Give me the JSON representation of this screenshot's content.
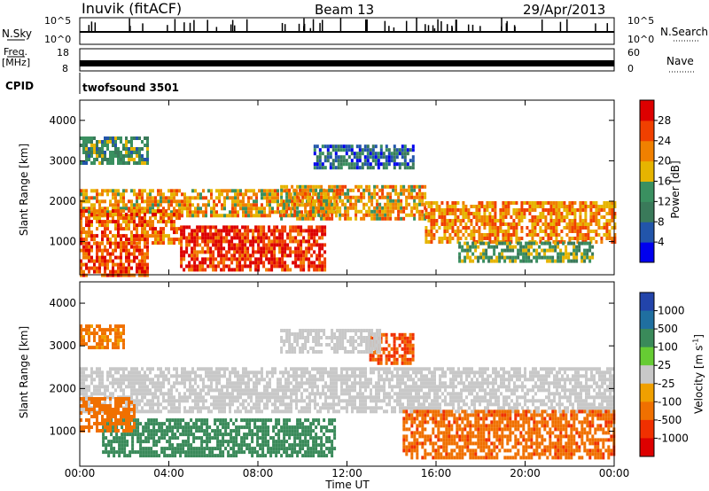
{
  "header": {
    "station": "Inuvik (fitACF)",
    "beam": "Beam 13",
    "date": "29/Apr/2013"
  },
  "summary_panels": {
    "nsky_label": "N.Sky",
    "nsky_tick_top": "10^5",
    "nsky_tick_bottom": "10^0",
    "nsearch_label": "N.Search",
    "nsearch_tick_top": "10^5",
    "nsearch_tick_bottom": "10^0",
    "freq_label": "Freq.",
    "freq_unit": "[MHz]",
    "freq_tick_top": "18",
    "freq_tick_bottom": "8",
    "nave_label": "Nave",
    "nave_tick_top": "60",
    "nave_tick_bottom": "0",
    "cpid_label": "CPID",
    "cpid_value": "twofsound 3501"
  },
  "colors": {
    "power_scale": [
      "#0000ee",
      "#2255aa",
      "#3a7a5a",
      "#3a9060",
      "#e6b400",
      "#f08000",
      "#f04000",
      "#dd0000"
    ],
    "velocity_scale": [
      "#2244aa",
      "#1f6fa0",
      "#3a8a5a",
      "#66cc33",
      "#c8c8c8",
      "#f0a000",
      "#f07000",
      "#f03000",
      "#dd0000"
    ]
  },
  "chart_data": [
    {
      "type": "heatmap",
      "title": "",
      "ylabel": "Slant Range [km]",
      "xlabel": "",
      "x_ticks": [
        "00:00",
        "04:00",
        "08:00",
        "12:00",
        "16:00",
        "20:00",
        "00:00"
      ],
      "x_range_hours": [
        0,
        24
      ],
      "y_ticks": [
        1000,
        2000,
        3000,
        4000
      ],
      "y_range": [
        180,
        4500
      ],
      "colorbar": {
        "label": "Power [dB]",
        "tick_labels": [
          "4",
          "8",
          "12",
          "16",
          "20",
          "24",
          "28"
        ],
        "range": [
          0,
          32
        ]
      },
      "regions": [
        {
          "t0": 0.0,
          "t1": 11.5,
          "r0": 1600,
          "r1": 2300,
          "value": 20
        },
        {
          "t0": 0.0,
          "t1": 4.5,
          "r0": 1000,
          "r1": 1800,
          "value": 24
        },
        {
          "t0": 4.5,
          "t1": 11.0,
          "r0": 300,
          "r1": 1400,
          "value": 28
        },
        {
          "t0": 0.0,
          "t1": 3.0,
          "r0": 200,
          "r1": 1000,
          "value": 26
        },
        {
          "t0": 9.0,
          "t1": 15.5,
          "r0": 1600,
          "r1": 2400,
          "value": 20
        },
        {
          "t0": 10.5,
          "t1": 15.0,
          "r0": 2800,
          "r1": 3400,
          "value": 8
        },
        {
          "t0": 15.5,
          "t1": 24.0,
          "r0": 1000,
          "r1": 2000,
          "value": 22
        },
        {
          "t0": 17.0,
          "t1": 23.0,
          "r0": 500,
          "r1": 1000,
          "value": 14
        },
        {
          "t0": 0.0,
          "t1": 3.0,
          "r0": 2900,
          "r1": 3600,
          "value": 12
        }
      ]
    },
    {
      "type": "heatmap",
      "title": "",
      "ylabel": "Slant Range [km]",
      "xlabel": "Time UT",
      "x_ticks": [
        "00:00",
        "04:00",
        "08:00",
        "12:00",
        "16:00",
        "20:00",
        "00:00"
      ],
      "x_range_hours": [
        0,
        24
      ],
      "y_ticks": [
        1000,
        2000,
        3000,
        4000
      ],
      "y_range": [
        180,
        4500
      ],
      "colorbar": {
        "label": "Velocity [m s^-1]",
        "tick_labels": [
          "1000",
          "500",
          "100",
          "25",
          "-25",
          "-100",
          "-500",
          "-1000"
        ],
        "range": [
          -1200,
          1200
        ]
      },
      "regions": [
        {
          "t0": 0.0,
          "t1": 24.0,
          "r0": 1500,
          "r1": 2500,
          "value": 0
        },
        {
          "t0": 1.0,
          "t1": 11.5,
          "r0": 400,
          "r1": 1300,
          "value": 300
        },
        {
          "t0": 0.0,
          "t1": 2.5,
          "r0": 1000,
          "r1": 1800,
          "value": -300
        },
        {
          "t0": 14.5,
          "t1": 24.0,
          "r0": 400,
          "r1": 1500,
          "value": -400
        },
        {
          "t0": 13.0,
          "t1": 15.0,
          "r0": 2600,
          "r1": 3300,
          "value": -500
        },
        {
          "t0": 9.0,
          "t1": 13.5,
          "r0": 2900,
          "r1": 3400,
          "value": 0
        },
        {
          "t0": 0.0,
          "t1": 2.0,
          "r0": 3000,
          "r1": 3500,
          "value": -200
        }
      ]
    }
  ]
}
